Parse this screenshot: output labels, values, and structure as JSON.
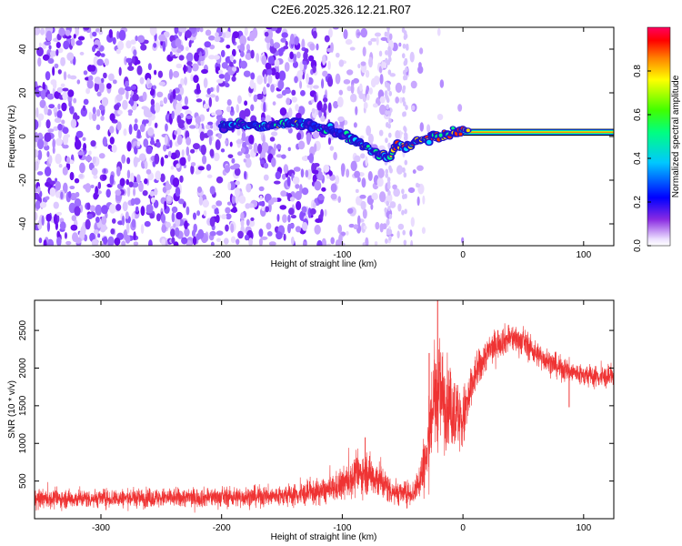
{
  "title": "C2E6.2025.326.12.21.R07",
  "chart_data": [
    {
      "type": "heatmap",
      "xlabel": "Height of straight line (km)",
      "ylabel": "Frequency (Hz)",
      "xlim": [
        -355,
        125
      ],
      "ylim": [
        -50,
        50
      ],
      "xticks": [
        -300,
        -200,
        -100,
        0,
        100
      ],
      "yticks": [
        -40,
        -20,
        0,
        20,
        40
      ],
      "xtick_labels": [
        "-300",
        "-200",
        "-100",
        "0",
        "100"
      ],
      "ytick_labels": [
        "-40",
        "-20",
        "0",
        "20",
        "40"
      ],
      "colorbar": {
        "label": "Normalized spectral amplitude",
        "range": [
          0,
          1
        ],
        "ticks": [
          0.0,
          0.2,
          0.4,
          0.6,
          0.8
        ],
        "tick_labels": [
          "0.0",
          "0.2",
          "0.4",
          "0.6",
          "0.8"
        ]
      },
      "ridge": {
        "x": [
          -200,
          -185,
          -170,
          -150,
          -135,
          -120,
          -110,
          -100,
          -90,
          -80,
          -70,
          -60,
          -55,
          -50,
          -45,
          -40,
          -30,
          -20,
          -10,
          0,
          10,
          20,
          40,
          60,
          80,
          100,
          125
        ],
        "y": [
          5,
          6,
          4,
          6,
          6,
          4,
          3,
          1,
          -2,
          -5,
          -8,
          -10,
          -3,
          -5,
          -4,
          -3,
          -1,
          0,
          1,
          3,
          2,
          2,
          2,
          2,
          2,
          2,
          2
        ]
      },
      "carrier_band": {
        "x_start": 0,
        "x_end": 125,
        "y_center": 2,
        "half_width": 1.5
      }
    },
    {
      "type": "line",
      "xlabel": "Height of straight line (km)",
      "ylabel": "SNR (10 * v/v)",
      "xlim": [
        -355,
        125
      ],
      "ylim": [
        0,
        2900
      ],
      "xticks": [
        -300,
        -200,
        -100,
        0,
        100
      ],
      "yticks": [
        500,
        1000,
        1500,
        2000,
        2500
      ],
      "xtick_labels": [
        "-300",
        "-200",
        "-100",
        "0",
        "100"
      ],
      "ytick_labels": [
        "500",
        "1000",
        "1500",
        "2000",
        "2500"
      ],
      "color": "#ef3333",
      "envelope": {
        "x": [
          -355,
          -300,
          -250,
          -200,
          -150,
          -130,
          -110,
          -100,
          -90,
          -80,
          -70,
          -60,
          -50,
          -40,
          -30,
          -25,
          -20,
          -10,
          0,
          10,
          20,
          30,
          40,
          50,
          60,
          80,
          100,
          125
        ],
        "mean": [
          260,
          270,
          275,
          285,
          300,
          330,
          380,
          450,
          560,
          620,
          520,
          380,
          330,
          350,
          800,
          1500,
          1700,
          1450,
          1300,
          1900,
          2200,
          2350,
          2400,
          2350,
          2200,
          2000,
          1900,
          1870
        ],
        "noise": [
          110,
          110,
          115,
          115,
          125,
          140,
          160,
          190,
          230,
          250,
          230,
          170,
          140,
          150,
          420,
          600,
          650,
          450,
          400,
          230,
          190,
          180,
          170,
          160,
          150,
          140,
          130,
          130
        ]
      },
      "spikes": [
        {
          "x": -21,
          "y": 2900
        },
        {
          "x": -28,
          "y": 2200
        },
        {
          "x": -7,
          "y": 1800
        },
        {
          "x": 88,
          "y": 1480
        },
        {
          "x": -81,
          "y": 1080
        }
      ]
    }
  ]
}
